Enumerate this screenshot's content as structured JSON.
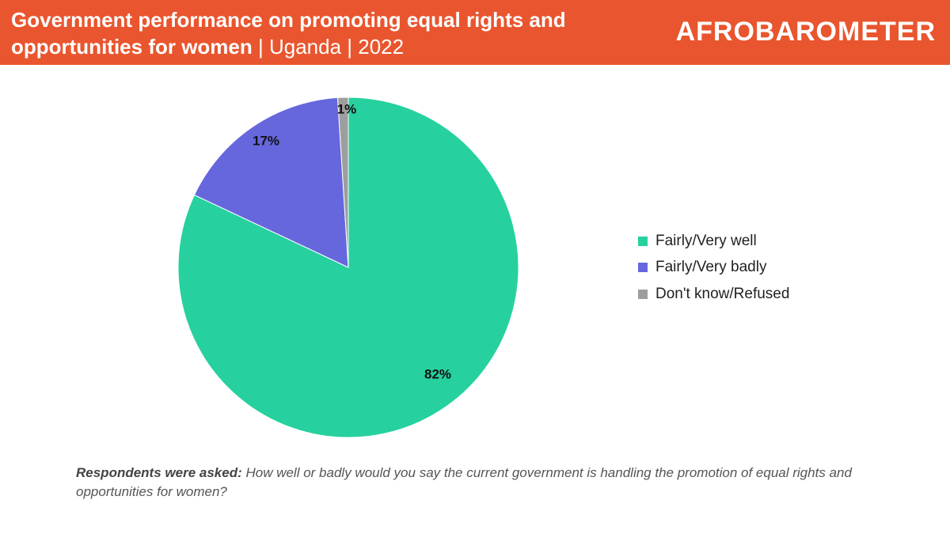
{
  "header": {
    "title_bold": "Government performance on promoting equal rights and opportunities for women",
    "title_suffix": " | Uganda | 2022",
    "logo_text": "AFROBAROMETER",
    "background_color": "#e9552e"
  },
  "chart_data": {
    "type": "pie",
    "title": "Government performance on promoting equal rights and opportunities for women | Uganda | 2022",
    "slices": [
      {
        "label": "Fairly/Very well",
        "value": 82,
        "value_label": "82%",
        "color": "#26d19f"
      },
      {
        "label": "Fairly/Very badly",
        "value": 17,
        "value_label": "17%",
        "color": "#6667dd"
      },
      {
        "label": "Don't know/Refused",
        "value": 1,
        "value_label": "1%",
        "color": "#9e9e9e"
      }
    ],
    "legend_position": "right"
  },
  "footnote": {
    "label": "Respondents were asked:",
    "question": " How well or badly would you say the current government is handling the promotion of equal rights and opportunities for women?"
  }
}
